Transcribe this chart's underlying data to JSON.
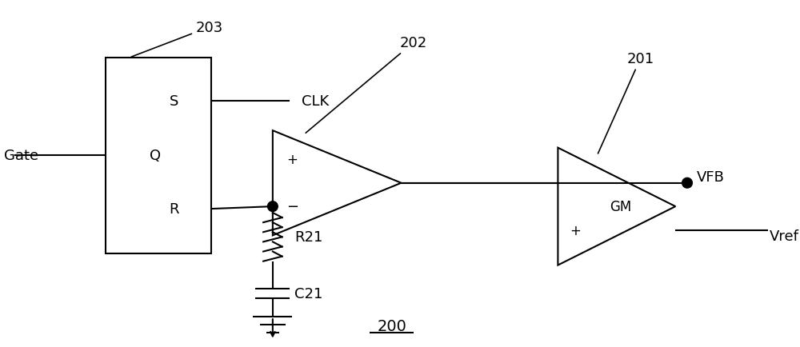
{
  "fig_width": 10.0,
  "fig_height": 4.35,
  "bg_color": "#ffffff",
  "line_color": "#000000",
  "line_width": 1.5,
  "font_size": 13,
  "label_200": "200",
  "label_201": "201",
  "label_202": "202",
  "label_203": "203",
  "label_CLK": "CLK",
  "label_Gate": "Gate",
  "label_S": "S",
  "label_Q": "Q",
  "label_R": "R",
  "label_plus1": "+",
  "label_minus1": "-",
  "label_GM": "GM",
  "label_plus2": "+",
  "label_minus2": "-",
  "label_VFB": "VFB",
  "label_Vref": "Vref",
  "label_R21": "R21",
  "label_C21": "C21"
}
